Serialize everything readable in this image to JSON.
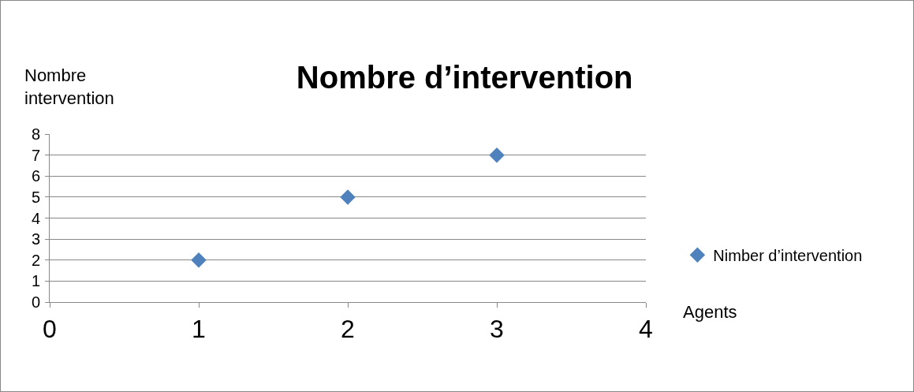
{
  "chart_data": {
    "type": "scatter",
    "title": "Nombre d’intervention",
    "xlabel": "Agents",
    "ylabel": "Nombre intervention",
    "x": [
      1,
      2,
      3
    ],
    "series": [
      {
        "name": "Nimber d’intervention",
        "color": "#4f81bd",
        "values": [
          2,
          5,
          7
        ]
      }
    ],
    "xlim": [
      0,
      4
    ],
    "xticks": [
      0,
      1,
      2,
      3,
      4
    ],
    "ylim": [
      0,
      8
    ],
    "yticks": [
      0,
      1,
      2,
      3,
      4,
      5,
      6,
      7,
      8
    ],
    "grid": "y",
    "legend": "right",
    "marker": "diamond"
  }
}
